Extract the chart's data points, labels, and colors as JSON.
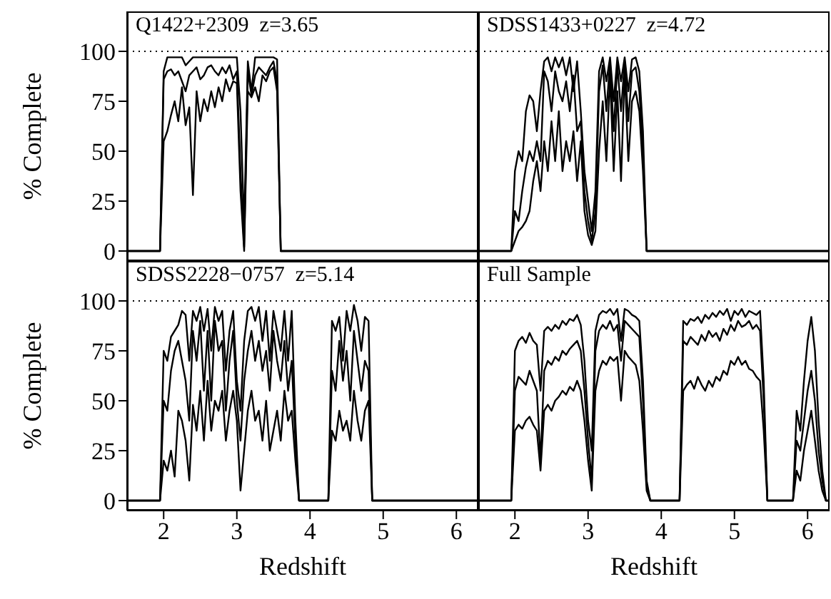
{
  "chart_data": [
    {
      "type": "line",
      "title": "Q1422+2309  z=3.65",
      "ylabel": "% Complete",
      "xlim": [
        1.5,
        6.3
      ],
      "ylim": [
        -5,
        120
      ],
      "xticks": [
        2,
        3,
        4,
        5,
        6
      ],
      "yticks": [
        0,
        25,
        50,
        75,
        100
      ],
      "tick_labels": "y",
      "ref_lines": [
        {
          "axis": "y",
          "value": 100,
          "line_style": "dotted",
          "color": "#000000"
        }
      ],
      "x": [
        1.5,
        1.95,
        2.0,
        2.05,
        2.1,
        2.15,
        2.2,
        2.25,
        2.3,
        2.35,
        2.4,
        2.45,
        2.5,
        2.55,
        2.6,
        2.65,
        2.7,
        2.75,
        2.8,
        2.85,
        2.9,
        2.95,
        3.0,
        3.05,
        3.1,
        3.15,
        3.2,
        3.25,
        3.3,
        3.35,
        3.4,
        3.45,
        3.5,
        3.55,
        3.6,
        6.3
      ],
      "series": [
        {
          "color": "#000000",
          "values": [
            0,
            0,
            90,
            97,
            97,
            97,
            97,
            97,
            93,
            95,
            97,
            97,
            97,
            97,
            97,
            97,
            97,
            97,
            97,
            97,
            97,
            97,
            97,
            70,
            12,
            95,
            80,
            97,
            97,
            97,
            97,
            97,
            97,
            96,
            0,
            0
          ]
        },
        {
          "color": "#000000",
          "values": [
            0,
            0,
            86,
            90,
            91,
            88,
            90,
            85,
            80,
            88,
            90,
            92,
            86,
            88,
            92,
            93,
            90,
            88,
            92,
            89,
            93,
            86,
            90,
            40,
            2,
            90,
            78,
            88,
            92,
            90,
            88,
            92,
            95,
            85,
            0,
            0
          ]
        },
        {
          "color": "#000000",
          "values": [
            0,
            0,
            55,
            60,
            68,
            75,
            65,
            82,
            63,
            72,
            28,
            80,
            65,
            76,
            70,
            80,
            72,
            82,
            75,
            86,
            80,
            85,
            84,
            30,
            0,
            80,
            77,
            82,
            75,
            88,
            85,
            90,
            92,
            80,
            0,
            0
          ]
        }
      ]
    },
    {
      "type": "line",
      "title": "SDSS1433+0227  z=4.72",
      "xlim": [
        1.5,
        6.3
      ],
      "ylim": [
        -5,
        120
      ],
      "xticks": [
        2,
        3,
        4,
        5,
        6
      ],
      "yticks": [
        0,
        25,
        50,
        75,
        100
      ],
      "tick_labels": false,
      "ref_lines": [
        {
          "axis": "y",
          "value": 100,
          "line_style": "dotted",
          "color": "#000000"
        }
      ],
      "x": [
        1.5,
        1.95,
        2.0,
        2.05,
        2.1,
        2.15,
        2.2,
        2.25,
        2.3,
        2.35,
        2.4,
        2.45,
        2.5,
        2.55,
        2.6,
        2.65,
        2.7,
        2.75,
        2.8,
        2.85,
        2.9,
        2.95,
        3.0,
        3.05,
        3.1,
        3.15,
        3.2,
        3.25,
        3.3,
        3.35,
        3.4,
        3.45,
        3.5,
        3.55,
        3.6,
        3.65,
        3.7,
        3.75,
        3.8,
        3.85,
        6.3
      ],
      "series": [
        {
          "color": "#000000",
          "values": [
            0,
            0,
            40,
            50,
            45,
            70,
            78,
            75,
            60,
            80,
            95,
            97,
            90,
            97,
            92,
            97,
            88,
            97,
            80,
            95,
            70,
            40,
            25,
            10,
            30,
            90,
            97,
            85,
            97,
            75,
            97,
            85,
            97,
            80,
            96,
            97,
            90,
            60,
            0,
            0,
            0
          ]
        },
        {
          "color": "#000000",
          "values": [
            0,
            0,
            20,
            15,
            30,
            42,
            50,
            45,
            55,
            45,
            90,
            85,
            70,
            90,
            80,
            75,
            85,
            70,
            88,
            60,
            65,
            30,
            15,
            5,
            20,
            80,
            93,
            70,
            95,
            60,
            93,
            70,
            95,
            65,
            90,
            92,
            80,
            50,
            0,
            0,
            0
          ]
        },
        {
          "color": "#000000",
          "values": [
            0,
            0,
            5,
            10,
            12,
            15,
            20,
            35,
            45,
            30,
            55,
            40,
            65,
            45,
            70,
            40,
            55,
            45,
            60,
            35,
            55,
            20,
            8,
            3,
            10,
            50,
            75,
            45,
            88,
            40,
            80,
            35,
            90,
            45,
            75,
            80,
            70,
            40,
            0,
            0,
            0
          ]
        }
      ]
    },
    {
      "type": "line",
      "title": "SDSS2228−0757  z=5.14",
      "xlabel": "Redshift",
      "ylabel": "% Complete",
      "xlim": [
        1.5,
        6.3
      ],
      "ylim": [
        -5,
        120
      ],
      "xticks": [
        2,
        3,
        4,
        5,
        6
      ],
      "yticks": [
        0,
        25,
        50,
        75,
        100
      ],
      "ref_lines": [
        {
          "axis": "y",
          "value": 100,
          "line_style": "dotted",
          "color": "#000000"
        }
      ],
      "x": [
        1.5,
        1.95,
        2.0,
        2.05,
        2.1,
        2.15,
        2.2,
        2.25,
        2.3,
        2.35,
        2.4,
        2.45,
        2.5,
        2.55,
        2.6,
        2.65,
        2.7,
        2.75,
        2.8,
        2.85,
        2.9,
        2.95,
        3.0,
        3.05,
        3.1,
        3.15,
        3.2,
        3.25,
        3.3,
        3.35,
        3.4,
        3.45,
        3.5,
        3.55,
        3.6,
        3.65,
        3.7,
        3.75,
        3.8,
        3.85,
        4.25,
        4.3,
        4.35,
        4.4,
        4.45,
        4.5,
        4.55,
        4.6,
        4.65,
        4.7,
        4.75,
        4.8,
        4.85,
        6.3
      ],
      "series": [
        {
          "color": "#000000",
          "values": [
            0,
            0,
            75,
            70,
            82,
            85,
            88,
            95,
            93,
            70,
            95,
            90,
            97,
            85,
            96,
            75,
            97,
            90,
            95,
            65,
            85,
            95,
            60,
            45,
            80,
            95,
            97,
            90,
            97,
            80,
            95,
            70,
            95,
            85,
            75,
            95,
            70,
            95,
            40,
            0,
            0,
            90,
            85,
            92,
            70,
            95,
            85,
            98,
            90,
            75,
            92,
            90,
            0,
            0
          ]
        },
        {
          "color": "#000000",
          "values": [
            0,
            0,
            50,
            45,
            65,
            75,
            80,
            70,
            60,
            40,
            85,
            70,
            90,
            55,
            85,
            50,
            90,
            75,
            80,
            45,
            70,
            85,
            50,
            30,
            60,
            75,
            85,
            70,
            80,
            65,
            75,
            55,
            85,
            70,
            60,
            80,
            55,
            70,
            30,
            0,
            0,
            65,
            55,
            80,
            60,
            75,
            50,
            85,
            70,
            55,
            70,
            65,
            0,
            0
          ]
        },
        {
          "color": "#000000",
          "values": [
            0,
            0,
            20,
            15,
            25,
            12,
            45,
            40,
            30,
            10,
            48,
            35,
            55,
            30,
            60,
            35,
            50,
            45,
            55,
            30,
            45,
            55,
            40,
            5,
            25,
            45,
            55,
            40,
            45,
            30,
            50,
            25,
            35,
            45,
            30,
            55,
            40,
            45,
            20,
            0,
            0,
            35,
            30,
            45,
            35,
            40,
            30,
            55,
            40,
            30,
            45,
            50,
            0,
            0
          ]
        }
      ]
    },
    {
      "type": "line",
      "title": "Full Sample",
      "xlabel": "Redshift",
      "xlim": [
        1.5,
        6.3
      ],
      "ylim": [
        -5,
        120
      ],
      "xticks": [
        2,
        3,
        4,
        5,
        6
      ],
      "yticks": [
        0,
        25,
        50,
        75,
        100
      ],
      "tick_labels": "x",
      "ref_lines": [
        {
          "axis": "y",
          "value": 100,
          "line_style": "dotted",
          "color": "#000000"
        }
      ],
      "x": [
        1.5,
        1.95,
        2.0,
        2.05,
        2.1,
        2.15,
        2.2,
        2.25,
        2.3,
        2.35,
        2.4,
        2.45,
        2.5,
        2.55,
        2.6,
        2.65,
        2.7,
        2.75,
        2.8,
        2.85,
        2.9,
        2.95,
        3.0,
        3.05,
        3.1,
        3.15,
        3.2,
        3.25,
        3.3,
        3.35,
        3.4,
        3.45,
        3.5,
        3.55,
        3.6,
        3.65,
        3.7,
        3.75,
        3.8,
        3.85,
        4.25,
        4.3,
        4.35,
        4.4,
        4.45,
        4.5,
        4.55,
        4.6,
        4.65,
        4.7,
        4.75,
        4.8,
        4.85,
        4.9,
        4.95,
        5.0,
        5.05,
        5.1,
        5.15,
        5.2,
        5.25,
        5.3,
        5.35,
        5.4,
        5.45,
        5.8,
        5.85,
        5.9,
        5.95,
        6.0,
        6.05,
        6.1,
        6.15,
        6.2,
        6.25,
        6.3
      ],
      "series": [
        {
          "color": "#000000",
          "values": [
            0,
            0,
            75,
            80,
            82,
            79,
            84,
            80,
            78,
            55,
            85,
            87,
            85,
            88,
            86,
            90,
            88,
            91,
            90,
            93,
            88,
            70,
            40,
            25,
            85,
            93,
            95,
            94,
            96,
            93,
            96,
            80,
            96,
            95,
            93,
            92,
            90,
            60,
            10,
            0,
            0,
            90,
            88,
            91,
            90,
            92,
            89,
            93,
            91,
            94,
            92,
            95,
            93,
            96,
            90,
            95,
            93,
            96,
            92,
            95,
            94,
            93,
            95,
            60,
            0,
            0,
            45,
            35,
            60,
            80,
            92,
            75,
            40,
            15,
            0,
            0
          ]
        },
        {
          "color": "#000000",
          "values": [
            0,
            0,
            55,
            62,
            60,
            58,
            65,
            60,
            55,
            20,
            65,
            70,
            68,
            72,
            70,
            75,
            73,
            76,
            78,
            80,
            75,
            55,
            30,
            10,
            75,
            85,
            88,
            86,
            90,
            85,
            88,
            70,
            90,
            88,
            86,
            84,
            82,
            50,
            8,
            0,
            0,
            80,
            78,
            82,
            80,
            78,
            83,
            80,
            85,
            82,
            84,
            80,
            86,
            83,
            88,
            85,
            90,
            87,
            88,
            90,
            86,
            88,
            85,
            50,
            0,
            0,
            30,
            25,
            40,
            55,
            65,
            50,
            25,
            10,
            0,
            0
          ]
        },
        {
          "color": "#000000",
          "values": [
            0,
            0,
            35,
            38,
            36,
            40,
            42,
            38,
            35,
            15,
            45,
            48,
            45,
            50,
            52,
            55,
            53,
            57,
            55,
            60,
            55,
            40,
            20,
            5,
            55,
            65,
            70,
            68,
            72,
            70,
            72,
            50,
            75,
            72,
            70,
            68,
            60,
            35,
            5,
            0,
            0,
            55,
            58,
            60,
            56,
            62,
            58,
            55,
            60,
            57,
            62,
            60,
            65,
            63,
            70,
            68,
            72,
            68,
            70,
            66,
            65,
            62,
            60,
            35,
            0,
            0,
            15,
            10,
            25,
            35,
            45,
            30,
            15,
            5,
            0,
            0
          ]
        }
      ]
    }
  ]
}
